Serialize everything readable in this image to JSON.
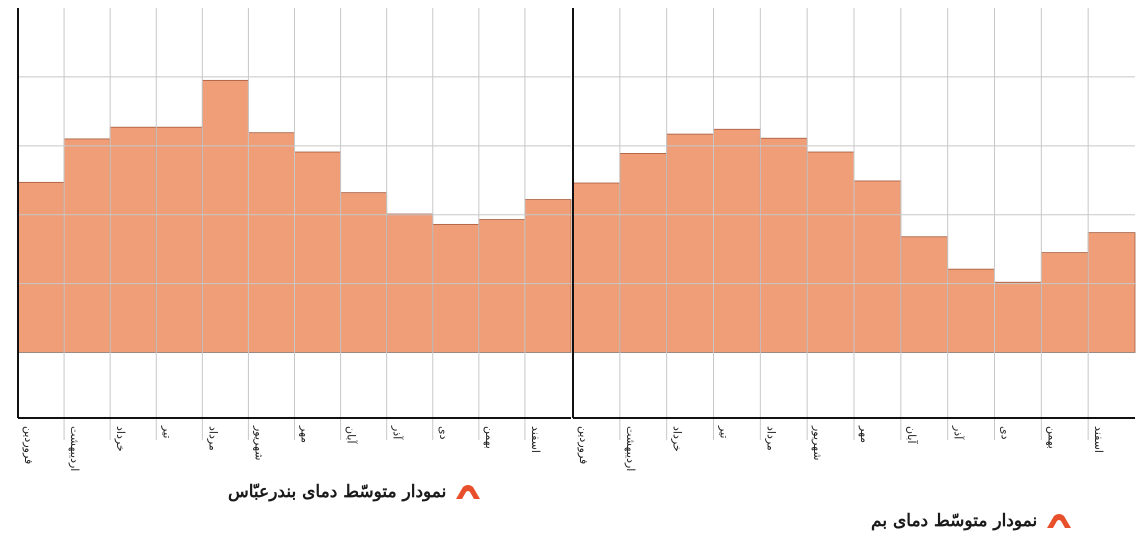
{
  "colors": {
    "bar_fill": "#ef9e77",
    "bar_border": "#a55a3c",
    "grid": "#c8c8c8",
    "axis": "#111111",
    "marker": "#e8502c"
  },
  "charts": [
    {
      "title": "نمودار متوسّط دمای بندرعبّاس",
      "marker_icon": "orange-arch-icon"
    },
    {
      "title": "نمودار متوسّط دمای بم",
      "marker_icon": "orange-arch-icon"
    }
  ],
  "chart_data": [
    {
      "type": "bar",
      "title": "نمودار متوسّط دمای بندرعبّاس",
      "categories": [
        "فروردین",
        "اردیبهشت",
        "خرداد",
        "تیر",
        "مرداد",
        "شهریور",
        "مهر",
        "آبان",
        "آذر",
        "دی",
        "بهمن",
        "اسفند"
      ],
      "values": [
        24.7,
        31.0,
        32.7,
        32.7,
        39.5,
        31.9,
        29.1,
        23.2,
        20.1,
        18.6,
        19.3,
        22.2
      ],
      "ylim": [
        -9.5,
        50
      ],
      "grid": true,
      "value_axis_ticks": false
    },
    {
      "type": "bar",
      "title": "نمودار متوسّط دمای بم",
      "categories": [
        "فروردین",
        "اردیبهشت",
        "خرداد",
        "تیر",
        "مرداد",
        "شهریور",
        "مهر",
        "آبان",
        "آذر",
        "دی",
        "بهمن",
        "اسفند"
      ],
      "values": [
        24.6,
        28.9,
        31.7,
        32.4,
        31.1,
        29.1,
        24.9,
        16.8,
        12.1,
        10.2,
        14.5,
        17.4
      ],
      "ylim": [
        -9.5,
        50
      ],
      "grid": true,
      "value_axis_ticks": false
    }
  ]
}
